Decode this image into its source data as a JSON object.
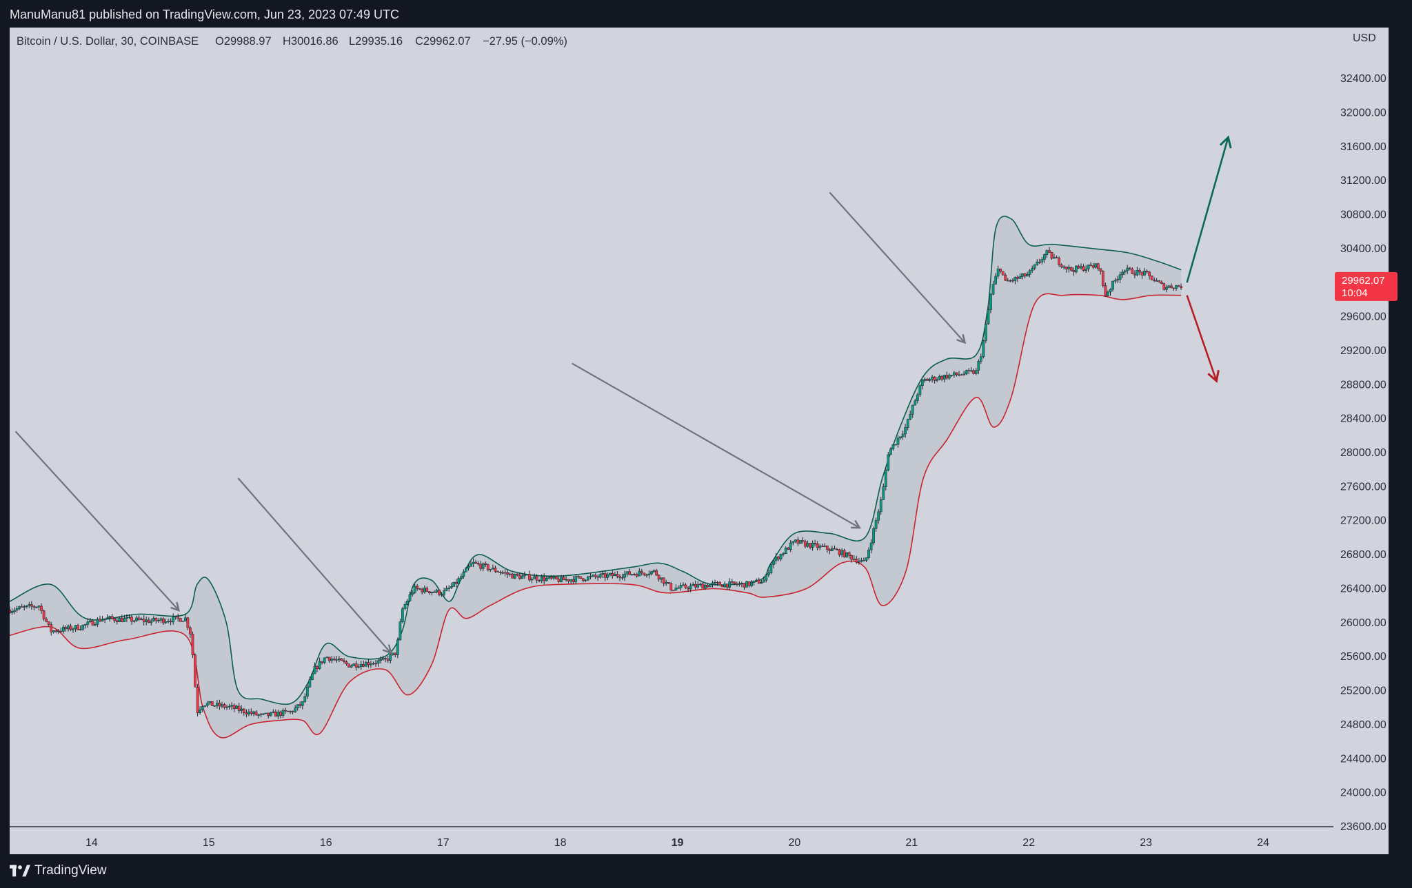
{
  "header": {
    "published_line": "ManuManu81 published on TradingView.com, Jun 23, 2023 07:49 UTC"
  },
  "legend": {
    "symbol": "Bitcoin / U.S. Dollar, 30, COINBASE",
    "open": "O29988.97",
    "high": "H30016.86",
    "low": "L29935.16",
    "close": "C29962.07",
    "change": "−27.95 (−0.09%)"
  },
  "price_tag": {
    "value": "29962.07",
    "countdown": "10:04"
  },
  "footer": {
    "brand": "TradingView",
    "logo_icon": "tradingview-logo-icon"
  },
  "colors": {
    "background": "#131722",
    "plot_background": "#d1d4dc",
    "bullish": "#089981",
    "bearish": "#f23645",
    "upper_band": "#0b5e4e",
    "lower_band": "#c8232f",
    "band_fill": "#c4c8d1",
    "arrow_gray": "#70737d",
    "arrow_up": "#0b6a55",
    "arrow_down": "#b51d25",
    "price_tag": "#f23645"
  },
  "chart_data": {
    "type": "candlestick",
    "symbol": "BTCUSD",
    "timeframe": "30",
    "exchange": "COINBASE",
    "y_axis": {
      "unit": "USD",
      "ylim": [
        23600,
        33000
      ],
      "ticks": [
        23600,
        24000,
        24400,
        24800,
        25200,
        25600,
        26000,
        26400,
        26800,
        27200,
        27600,
        28000,
        28400,
        28800,
        29200,
        29600,
        30000,
        30400,
        30800,
        31200,
        31600,
        32000,
        32400
      ],
      "tick_labels": [
        "23600.00",
        "24000.00",
        "24400.00",
        "24800.00",
        "25200.00",
        "25600.00",
        "26000.00",
        "26400.00",
        "26800.00",
        "27200.00",
        "27600.00",
        "28000.00",
        "28400.00",
        "28800.00",
        "29200.00",
        "29600.00",
        "",
        "30400.00",
        "30800.00",
        "31200.00",
        "31600.00",
        "32000.00",
        "32400.00"
      ]
    },
    "x_axis": {
      "xlim": [
        13.3,
        24.6
      ],
      "tick_values": [
        14,
        15,
        16,
        17,
        18,
        19,
        20,
        21,
        22,
        23,
        24
      ],
      "tick_labels": [
        "14",
        "15",
        "16",
        "17",
        "18",
        "19",
        "20",
        "21",
        "22",
        "23",
        "24"
      ],
      "bold_labels": [
        "19"
      ]
    },
    "price_path": [
      [
        13.3,
        26150
      ],
      [
        13.55,
        26200
      ],
      [
        13.65,
        25900
      ],
      [
        13.9,
        25950
      ],
      [
        14.1,
        26050
      ],
      [
        14.5,
        26020
      ],
      [
        14.8,
        26050
      ],
      [
        14.85,
        25850
      ],
      [
        14.9,
        24950
      ],
      [
        14.95,
        25050
      ],
      [
        15.2,
        25000
      ],
      [
        15.45,
        24900
      ],
      [
        15.7,
        24950
      ],
      [
        15.8,
        25050
      ],
      [
        15.9,
        25450
      ],
      [
        16.0,
        25600
      ],
      [
        16.2,
        25500
      ],
      [
        16.5,
        25550
      ],
      [
        16.6,
        25650
      ],
      [
        16.65,
        26150
      ],
      [
        16.75,
        26400
      ],
      [
        17.0,
        26350
      ],
      [
        17.1,
        26450
      ],
      [
        17.25,
        26700
      ],
      [
        17.6,
        26550
      ],
      [
        18.0,
        26500
      ],
      [
        18.4,
        26550
      ],
      [
        18.8,
        26600
      ],
      [
        18.95,
        26400
      ],
      [
        19.3,
        26450
      ],
      [
        19.6,
        26450
      ],
      [
        19.75,
        26500
      ],
      [
        19.8,
        26700
      ],
      [
        20.0,
        26950
      ],
      [
        20.35,
        26850
      ],
      [
        20.6,
        26700
      ],
      [
        20.65,
        26950
      ],
      [
        20.75,
        27500
      ],
      [
        20.8,
        28000
      ],
      [
        20.95,
        28300
      ],
      [
        21.05,
        28700
      ],
      [
        21.1,
        28850
      ],
      [
        21.3,
        28900
      ],
      [
        21.55,
        28950
      ],
      [
        21.6,
        29200
      ],
      [
        21.68,
        29900
      ],
      [
        21.75,
        30200
      ],
      [
        21.8,
        30000
      ],
      [
        22.0,
        30100
      ],
      [
        22.15,
        30350
      ],
      [
        22.35,
        30150
      ],
      [
        22.6,
        30200
      ],
      [
        22.65,
        29850
      ],
      [
        22.8,
        30150
      ],
      [
        23.0,
        30100
      ],
      [
        23.15,
        29950
      ],
      [
        23.3,
        29962
      ]
    ],
    "upper_band_path": [
      [
        13.3,
        26250
      ],
      [
        13.65,
        26450
      ],
      [
        13.95,
        26050
      ],
      [
        14.4,
        26100
      ],
      [
        14.8,
        26100
      ],
      [
        14.9,
        26450
      ],
      [
        15.0,
        26500
      ],
      [
        15.15,
        26000
      ],
      [
        15.25,
        25200
      ],
      [
        15.45,
        25100
      ],
      [
        15.7,
        25050
      ],
      [
        15.85,
        25300
      ],
      [
        16.0,
        25750
      ],
      [
        16.2,
        25600
      ],
      [
        16.5,
        25600
      ],
      [
        16.65,
        25900
      ],
      [
        16.75,
        26450
      ],
      [
        16.9,
        26500
      ],
      [
        17.05,
        26250
      ],
      [
        17.15,
        26500
      ],
      [
        17.3,
        26800
      ],
      [
        17.6,
        26600
      ],
      [
        18.0,
        26550
      ],
      [
        18.6,
        26650
      ],
      [
        18.85,
        26700
      ],
      [
        19.05,
        26600
      ],
      [
        19.3,
        26450
      ],
      [
        19.7,
        26500
      ],
      [
        19.8,
        26700
      ],
      [
        20.0,
        27050
      ],
      [
        20.3,
        27050
      ],
      [
        20.6,
        27000
      ],
      [
        20.75,
        27700
      ],
      [
        20.9,
        28300
      ],
      [
        21.1,
        28900
      ],
      [
        21.3,
        29100
      ],
      [
        21.55,
        29150
      ],
      [
        21.65,
        29700
      ],
      [
        21.72,
        30650
      ],
      [
        21.85,
        30750
      ],
      [
        22.0,
        30450
      ],
      [
        22.2,
        30450
      ],
      [
        22.55,
        30400
      ],
      [
        22.85,
        30350
      ],
      [
        23.1,
        30250
      ],
      [
        23.3,
        30150
      ]
    ],
    "lower_band_path": [
      [
        13.3,
        25850
      ],
      [
        13.65,
        25950
      ],
      [
        13.9,
        25700
      ],
      [
        14.3,
        25800
      ],
      [
        14.8,
        25850
      ],
      [
        14.95,
        25000
      ],
      [
        15.1,
        24650
      ],
      [
        15.35,
        24800
      ],
      [
        15.6,
        24850
      ],
      [
        15.8,
        24850
      ],
      [
        15.95,
        24700
      ],
      [
        16.2,
        25300
      ],
      [
        16.5,
        25450
      ],
      [
        16.7,
        25150
      ],
      [
        16.9,
        25500
      ],
      [
        17.05,
        26150
      ],
      [
        17.2,
        26050
      ],
      [
        17.4,
        26200
      ],
      [
        17.7,
        26400
      ],
      [
        18.0,
        26450
      ],
      [
        18.6,
        26450
      ],
      [
        18.9,
        26350
      ],
      [
        19.3,
        26400
      ],
      [
        19.6,
        26350
      ],
      [
        19.75,
        26300
      ],
      [
        20.1,
        26400
      ],
      [
        20.4,
        26700
      ],
      [
        20.6,
        26650
      ],
      [
        20.75,
        26200
      ],
      [
        20.95,
        26600
      ],
      [
        21.1,
        27700
      ],
      [
        21.3,
        28150
      ],
      [
        21.55,
        28650
      ],
      [
        21.7,
        28300
      ],
      [
        21.85,
        28650
      ],
      [
        22.05,
        29750
      ],
      [
        22.3,
        29850
      ],
      [
        22.6,
        29850
      ],
      [
        22.8,
        29800
      ],
      [
        23.05,
        29850
      ],
      [
        23.3,
        29850
      ]
    ],
    "annotations": [
      {
        "type": "arrow",
        "color": "gray",
        "from": [
          13.35,
          28250
        ],
        "to": [
          14.74,
          26150
        ]
      },
      {
        "type": "arrow",
        "color": "gray",
        "from": [
          15.25,
          27700
        ],
        "to": [
          16.55,
          25650
        ]
      },
      {
        "type": "arrow",
        "color": "gray",
        "from": [
          18.1,
          29050
        ],
        "to": [
          20.55,
          27120
        ]
      },
      {
        "type": "arrow",
        "color": "gray",
        "from": [
          20.3,
          31060
        ],
        "to": [
          21.45,
          29300
        ]
      },
      {
        "type": "arrow",
        "color": "green",
        "from": [
          23.35,
          30000
        ],
        "to": [
          23.7,
          31700
        ]
      },
      {
        "type": "arrow",
        "color": "red",
        "from": [
          23.35,
          29850
        ],
        "to": [
          23.6,
          28850
        ]
      }
    ]
  }
}
